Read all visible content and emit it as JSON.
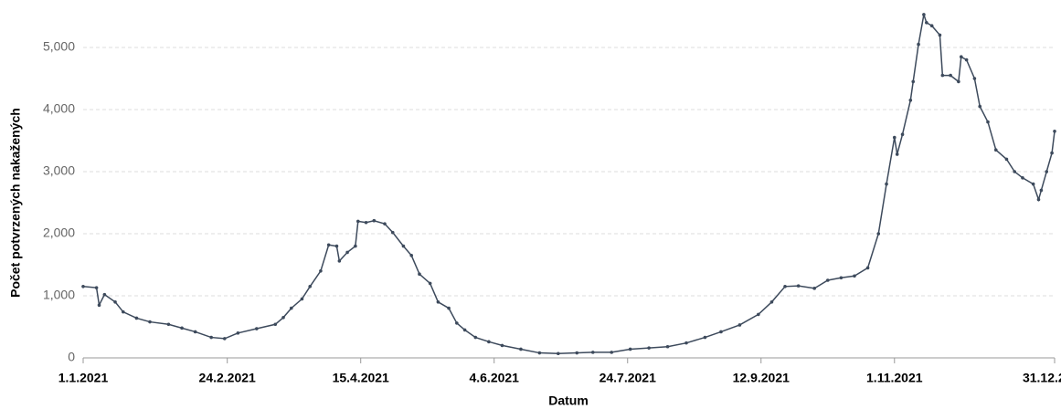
{
  "chart_data": {
    "type": "line",
    "x_label": "Datum",
    "y_label": "Počet potvrzených nakažených",
    "x": [
      "2021-01-01",
      "2021-01-06",
      "2021-01-07",
      "2021-01-09",
      "2021-01-13",
      "2021-01-16",
      "2021-01-21",
      "2021-01-26",
      "2021-02-02",
      "2021-02-07",
      "2021-02-12",
      "2021-02-18",
      "2021-02-23",
      "2021-02-28",
      "2021-03-07",
      "2021-03-14",
      "2021-03-17",
      "2021-03-20",
      "2021-03-24",
      "2021-03-27",
      "2021-03-31",
      "2021-04-03",
      "2021-04-06",
      "2021-04-07",
      "2021-04-10",
      "2021-04-13",
      "2021-04-14",
      "2021-04-17",
      "2021-04-20",
      "2021-04-24",
      "2021-04-27",
      "2021-05-01",
      "2021-05-04",
      "2021-05-07",
      "2021-05-11",
      "2021-05-14",
      "2021-05-18",
      "2021-05-21",
      "2021-05-24",
      "2021-05-28",
      "2021-06-02",
      "2021-06-07",
      "2021-06-14",
      "2021-06-21",
      "2021-06-28",
      "2021-07-05",
      "2021-07-11",
      "2021-07-18",
      "2021-07-25",
      "2021-08-01",
      "2021-08-08",
      "2021-08-15",
      "2021-08-22",
      "2021-08-28",
      "2021-09-04",
      "2021-09-11",
      "2021-09-16",
      "2021-09-21",
      "2021-09-26",
      "2021-10-02",
      "2021-10-07",
      "2021-10-12",
      "2021-10-17",
      "2021-10-22",
      "2021-10-26",
      "2021-10-29",
      "2021-11-01",
      "2021-11-02",
      "2021-11-04",
      "2021-11-07",
      "2021-11-08",
      "2021-11-10",
      "2021-11-12",
      "2021-11-13",
      "2021-11-15",
      "2021-11-18",
      "2021-11-19",
      "2021-11-22",
      "2021-11-25",
      "2021-11-26",
      "2021-11-28",
      "2021-12-01",
      "2021-12-03",
      "2021-12-06",
      "2021-12-09",
      "2021-12-13",
      "2021-12-16",
      "2021-12-19",
      "2021-12-23",
      "2021-12-25",
      "2021-12-26",
      "2021-12-28",
      "2021-12-30",
      "2021-12-31"
    ],
    "series": [
      {
        "color": "#3d4a5c",
        "values": [
          1150,
          1130,
          850,
          1020,
          900,
          740,
          640,
          580,
          540,
          480,
          420,
          330,
          310,
          400,
          470,
          540,
          650,
          800,
          950,
          1150,
          1400,
          1820,
          1800,
          1560,
          1700,
          1800,
          2200,
          2180,
          2210,
          2160,
          2020,
          1800,
          1650,
          1350,
          1200,
          900,
          800,
          560,
          450,
          330,
          260,
          200,
          140,
          80,
          70,
          80,
          90,
          90,
          140,
          160,
          180,
          240,
          330,
          420,
          530,
          700,
          900,
          1150,
          1160,
          1120,
          1250,
          1290,
          1320,
          1450,
          2000,
          2800,
          3550,
          3280,
          3600,
          4150,
          4450,
          5050,
          5530,
          5400,
          5350,
          5200,
          4550,
          4550,
          4450,
          4850,
          4800,
          4500,
          4050,
          3800,
          3350,
          3200,
          3000,
          2900,
          2800,
          2550,
          2700,
          3000,
          3300,
          3650
        ]
      }
    ],
    "xlim": [
      "2021-01-01",
      "2021-12-31"
    ],
    "xticks": [
      {
        "value": "2021-01-01",
        "label": "1.1.2021"
      },
      {
        "value": "2021-02-24",
        "label": "24.2.2021"
      },
      {
        "value": "2021-04-15",
        "label": "15.4.2021"
      },
      {
        "value": "2021-06-04",
        "label": "4.6.2021"
      },
      {
        "value": "2021-07-24",
        "label": "24.7.2021"
      },
      {
        "value": "2021-09-12",
        "label": "12.9.2021"
      },
      {
        "value": "2021-11-01",
        "label": "1.11.2021"
      },
      {
        "value": "2021-12-31",
        "label": "31.12.2021"
      }
    ],
    "ylim": [
      0,
      5600
    ],
    "yticks": [
      0,
      {
        "value": 1000,
        "label": "1,000"
      },
      {
        "value": 2000,
        "label": "2,000"
      },
      {
        "value": 3000,
        "label": "3,000"
      },
      {
        "value": 4000,
        "label": "4,000"
      },
      {
        "value": 5000,
        "label": "5,000"
      }
    ],
    "grid": true
  }
}
